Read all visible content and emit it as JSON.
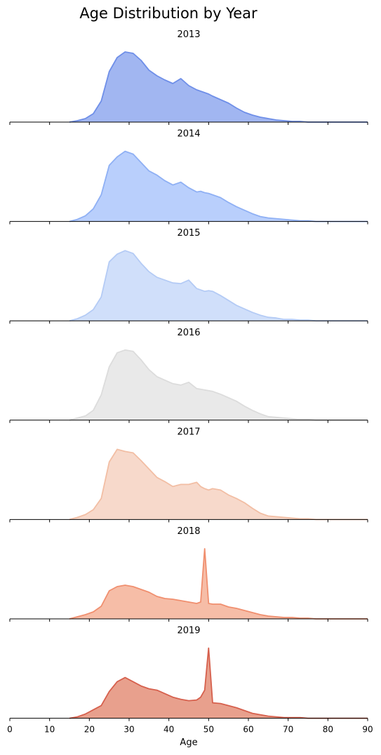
{
  "chart_data": {
    "type": "area",
    "title": "Age Distribution by Year",
    "xlabel": "Age",
    "xlim": [
      0,
      90
    ],
    "x_ticks": [
      "0",
      "10",
      "20",
      "30",
      "40",
      "50",
      "60",
      "70",
      "80",
      "90"
    ],
    "legend": "none",
    "grid": false,
    "x": [
      15,
      17,
      19,
      21,
      23,
      25,
      27,
      29,
      31,
      33,
      35,
      37,
      39,
      41,
      43,
      45,
      47,
      48,
      49,
      50,
      51,
      53,
      55,
      57,
      59,
      61,
      63,
      65,
      67,
      69,
      71,
      73,
      75,
      77,
      80,
      85,
      90
    ],
    "series": [
      {
        "name": "2013",
        "color": "#6f8fe8",
        "fill": "#a1b6f1",
        "values": [
          0.0,
          0.02,
          0.05,
          0.12,
          0.3,
          0.72,
          0.92,
          1.0,
          0.98,
          0.88,
          0.74,
          0.66,
          0.6,
          0.55,
          0.62,
          0.52,
          0.46,
          0.44,
          0.42,
          0.4,
          0.37,
          0.32,
          0.27,
          0.2,
          0.14,
          0.1,
          0.07,
          0.05,
          0.03,
          0.02,
          0.01,
          0.01,
          0.0,
          0.0,
          0.0,
          0.0,
          0.0
        ]
      },
      {
        "name": "2014",
        "color": "#8fb0f4",
        "fill": "#b9cffc",
        "values": [
          0.0,
          0.03,
          0.08,
          0.18,
          0.38,
          0.8,
          0.92,
          1.0,
          0.96,
          0.84,
          0.72,
          0.66,
          0.58,
          0.52,
          0.56,
          0.48,
          0.42,
          0.43,
          0.41,
          0.4,
          0.38,
          0.34,
          0.27,
          0.21,
          0.16,
          0.11,
          0.07,
          0.05,
          0.04,
          0.03,
          0.02,
          0.01,
          0.01,
          0.0,
          0.0,
          0.0,
          0.0
        ]
      },
      {
        "name": "2015",
        "color": "#b4cbf5",
        "fill": "#d0dffa",
        "values": [
          0.0,
          0.03,
          0.08,
          0.16,
          0.34,
          0.84,
          0.95,
          1.0,
          0.96,
          0.82,
          0.7,
          0.62,
          0.58,
          0.54,
          0.53,
          0.58,
          0.46,
          0.44,
          0.42,
          0.43,
          0.42,
          0.36,
          0.29,
          0.22,
          0.17,
          0.12,
          0.08,
          0.05,
          0.04,
          0.02,
          0.02,
          0.01,
          0.01,
          0.0,
          0.0,
          0.0,
          0.0
        ]
      },
      {
        "name": "2016",
        "color": "#dcdcdc",
        "fill": "#e9e9e9",
        "values": [
          0.0,
          0.03,
          0.06,
          0.14,
          0.36,
          0.76,
          0.96,
          1.0,
          0.98,
          0.86,
          0.72,
          0.62,
          0.57,
          0.52,
          0.5,
          0.54,
          0.45,
          0.44,
          0.43,
          0.42,
          0.41,
          0.37,
          0.32,
          0.27,
          0.2,
          0.14,
          0.09,
          0.05,
          0.04,
          0.03,
          0.02,
          0.01,
          0.01,
          0.0,
          0.0,
          0.0,
          0.0
        ]
      },
      {
        "name": "2017",
        "color": "#f2bea4",
        "fill": "#f7d9cb",
        "values": [
          0.0,
          0.03,
          0.07,
          0.14,
          0.3,
          0.82,
          1.0,
          0.97,
          0.95,
          0.84,
          0.72,
          0.6,
          0.54,
          0.47,
          0.5,
          0.5,
          0.53,
          0.47,
          0.44,
          0.42,
          0.44,
          0.42,
          0.35,
          0.3,
          0.24,
          0.16,
          0.09,
          0.05,
          0.04,
          0.03,
          0.02,
          0.01,
          0.01,
          0.0,
          0.0,
          0.0,
          0.0
        ]
      },
      {
        "name": "2018",
        "color": "#f08f6f",
        "fill": "#f6bda7",
        "values": [
          0.0,
          0.03,
          0.06,
          0.1,
          0.18,
          0.4,
          0.46,
          0.48,
          0.46,
          0.42,
          0.38,
          0.32,
          0.29,
          0.28,
          0.26,
          0.24,
          0.22,
          0.24,
          1.0,
          0.22,
          0.21,
          0.21,
          0.17,
          0.15,
          0.12,
          0.09,
          0.06,
          0.04,
          0.03,
          0.02,
          0.02,
          0.01,
          0.01,
          0.0,
          0.0,
          0.0,
          0.0
        ]
      },
      {
        "name": "2019",
        "color": "#d6604d",
        "fill": "#e8a08d",
        "values": [
          0.0,
          0.02,
          0.06,
          0.12,
          0.18,
          0.38,
          0.52,
          0.58,
          0.52,
          0.46,
          0.42,
          0.4,
          0.35,
          0.3,
          0.27,
          0.25,
          0.26,
          0.3,
          0.4,
          1.0,
          0.22,
          0.21,
          0.18,
          0.15,
          0.11,
          0.07,
          0.05,
          0.03,
          0.02,
          0.01,
          0.01,
          0.01,
          0.0,
          0.0,
          0.0,
          0.0,
          0.0
        ]
      }
    ]
  }
}
